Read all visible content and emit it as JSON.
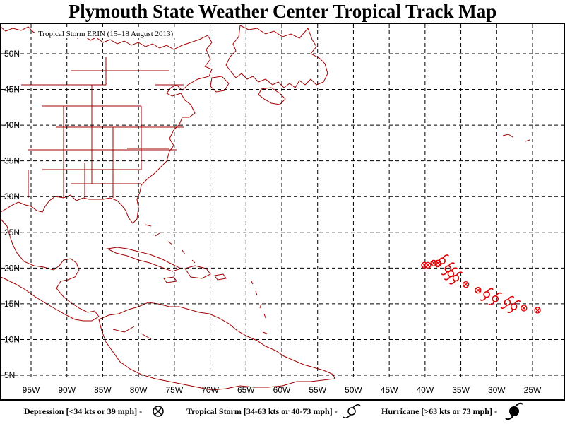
{
  "map": {
    "title": "Plymouth State Weather Center Tropical Track Map",
    "subtitle": "Tropical Storm ERIN (15–18 August 2013)",
    "lon_labels": [
      "95W",
      "90W",
      "85W",
      "80W",
      "75W",
      "70W",
      "65W",
      "60W",
      "55W",
      "50W",
      "45W",
      "40W",
      "35W",
      "30W",
      "25W"
    ],
    "lat_labels": [
      "50N",
      "45N",
      "40N",
      "35N",
      "30N",
      "25N",
      "20N",
      "15N",
      "10N",
      "5N"
    ],
    "lon_range": [
      -98,
      -22
    ],
    "lat_range": [
      4,
      53
    ],
    "coast_color": "#a00000",
    "track_color": "#e00000"
  },
  "legend": {
    "depression": "Depression [<34 kts or 39 mph] -",
    "tropical_storm": "Tropical Storm [34-63 kts or 40-73 mph] -",
    "hurricane": "Hurricane [>63 kts or 73 mph] -",
    "depression_icon": "circle-x-icon",
    "tropical_storm_icon": "open-swirl-icon",
    "hurricane_icon": "filled-swirl-icon"
  },
  "track": [
    {
      "lon": -40.1,
      "lat": 20.4,
      "type": "depression"
    },
    {
      "lon": -39.6,
      "lat": 20.4,
      "type": "depression"
    },
    {
      "lon": -38.8,
      "lat": 20.7,
      "type": "depression"
    },
    {
      "lon": -38.2,
      "lat": 20.7,
      "type": "depression"
    },
    {
      "lon": -37.6,
      "lat": 21.0,
      "type": "storm"
    },
    {
      "lon": -36.8,
      "lat": 19.9,
      "type": "storm"
    },
    {
      "lon": -36.4,
      "lat": 19.2,
      "type": "storm"
    },
    {
      "lon": -35.7,
      "lat": 18.6,
      "type": "storm"
    },
    {
      "lon": -34.3,
      "lat": 17.7,
      "type": "depression"
    },
    {
      "lon": -32.6,
      "lat": 16.9,
      "type": "depression"
    },
    {
      "lon": -31.4,
      "lat": 16.3,
      "type": "storm"
    },
    {
      "lon": -30.2,
      "lat": 15.7,
      "type": "storm"
    },
    {
      "lon": -28.5,
      "lat": 15.2,
      "type": "storm"
    },
    {
      "lon": -27.6,
      "lat": 14.6,
      "type": "storm"
    },
    {
      "lon": -26.2,
      "lat": 14.4,
      "type": "depression"
    },
    {
      "lon": -24.3,
      "lat": 14.1,
      "type": "depression"
    }
  ]
}
